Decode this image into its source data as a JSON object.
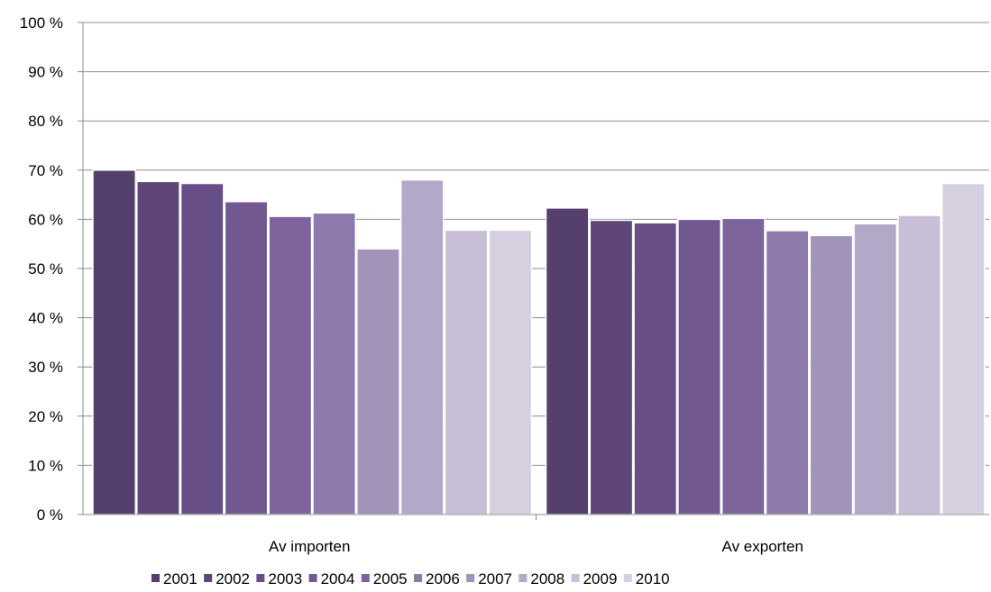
{
  "chart_data": {
    "type": "bar",
    "title": "",
    "xlabel": "",
    "ylabel": "",
    "ylim": [
      0,
      100
    ],
    "y_ticks": [
      "0 %",
      "10 %",
      "20 %",
      "30 %",
      "40 %",
      "50 %",
      "60 %",
      "70 %",
      "80 %",
      "90 %",
      "100 %"
    ],
    "grid": true,
    "legend_position": "bottom",
    "categories": [
      "Av importen",
      "Av exporten"
    ],
    "series": [
      {
        "name": "2001",
        "color": "#553f6c",
        "values": [
          70,
          62.3
        ]
      },
      {
        "name": "2002",
        "color": "#5e4679",
        "values": [
          67.7,
          59.8
        ]
      },
      {
        "name": "2003",
        "color": "#674e87",
        "values": [
          67.3,
          59.3
        ]
      },
      {
        "name": "2004",
        "color": "#715890",
        "values": [
          63.6,
          60
        ]
      },
      {
        "name": "2005",
        "color": "#7d649d",
        "values": [
          60.6,
          60.2
        ]
      },
      {
        "name": "2006",
        "color": "#8d79ab",
        "values": [
          61.3,
          57.7
        ]
      },
      {
        "name": "2007",
        "color": "#a293b9",
        "values": [
          54,
          56.7
        ]
      },
      {
        "name": "2008",
        "color": "#b3a8c7",
        "values": [
          68,
          59.1
        ]
      },
      {
        "name": "2009",
        "color": "#c8bfd6",
        "values": [
          57.8,
          60.8
        ]
      },
      {
        "name": "2010",
        "color": "#d6cfe0",
        "values": [
          57.8,
          67.3
        ]
      }
    ]
  }
}
